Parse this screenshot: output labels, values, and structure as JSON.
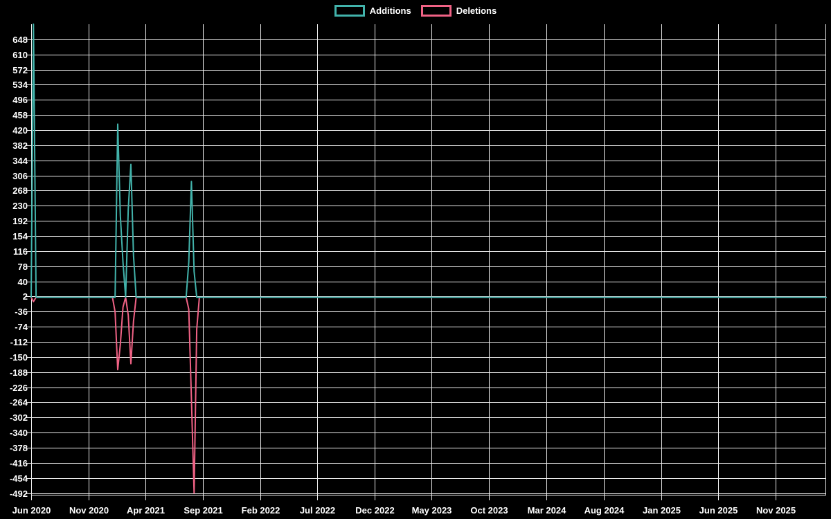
{
  "colors": {
    "background": "#000000",
    "grid": "#ededed",
    "axis_text": "#ffffff",
    "additions": "#42b3ab",
    "deletions": "#f06285"
  },
  "chart_data": {
    "type": "line",
    "title": "",
    "legend_position": "top-center",
    "grid": true,
    "x_axis": {
      "kind": "time",
      "start_date": "2020-06-01",
      "end_date": "2026-03-15",
      "tick_interval_months": 5,
      "tick_labels": [
        "Jun 2020",
        "Nov 2020",
        "Apr 2021",
        "Sep 2021",
        "Feb 2022",
        "Jul 2022",
        "Dec 2022",
        "May 2023",
        "Oct 2023",
        "Mar 2024",
        "Aug 2024",
        "Jan 2025",
        "Jun 2025",
        "Nov 2025"
      ]
    },
    "y_axis": {
      "min": -498,
      "max": 686,
      "tick_step": 38,
      "tick_values": [
        648,
        610,
        572,
        534,
        496,
        458,
        420,
        382,
        344,
        306,
        268,
        230,
        192,
        154,
        116,
        78,
        40,
        2,
        -36,
        -74,
        -112,
        -150,
        -188,
        -226,
        -264,
        -302,
        -340,
        -378,
        -416,
        -454,
        -492
      ]
    },
    "series": [
      {
        "name": "Additions",
        "color": "#42b3ab",
        "points": [
          [
            "2020-06-01",
            0
          ],
          [
            "2020-06-07",
            686
          ],
          [
            "2020-06-14",
            0
          ],
          [
            "2021-01-10",
            0
          ],
          [
            "2021-01-17",
            435
          ],
          [
            "2021-01-24",
            204
          ],
          [
            "2021-01-31",
            88
          ],
          [
            "2021-02-07",
            0
          ],
          [
            "2021-02-14",
            221
          ],
          [
            "2021-02-21",
            334
          ],
          [
            "2021-02-28",
            105
          ],
          [
            "2021-03-07",
            0
          ],
          [
            "2021-07-18",
            0
          ],
          [
            "2021-07-25",
            88
          ],
          [
            "2021-08-01",
            291
          ],
          [
            "2021-08-08",
            65
          ],
          [
            "2021-08-15",
            0
          ],
          [
            "2026-03-15",
            0
          ]
        ]
      },
      {
        "name": "Deletions",
        "color": "#f06285",
        "points": [
          [
            "2020-06-01",
            0
          ],
          [
            "2020-06-07",
            -11
          ],
          [
            "2020-06-14",
            0
          ],
          [
            "2021-01-03",
            0
          ],
          [
            "2021-01-10",
            -37
          ],
          [
            "2021-01-17",
            -182
          ],
          [
            "2021-01-24",
            -118
          ],
          [
            "2021-01-31",
            -25
          ],
          [
            "2021-02-07",
            0
          ],
          [
            "2021-02-14",
            -45
          ],
          [
            "2021-02-21",
            -167
          ],
          [
            "2021-02-28",
            -60
          ],
          [
            "2021-03-07",
            0
          ],
          [
            "2021-07-18",
            0
          ],
          [
            "2021-07-25",
            -30
          ],
          [
            "2021-08-01",
            -254
          ],
          [
            "2021-08-08",
            -492
          ],
          [
            "2021-08-15",
            -80
          ],
          [
            "2021-08-22",
            0
          ],
          [
            "2026-03-15",
            0
          ]
        ]
      }
    ]
  }
}
